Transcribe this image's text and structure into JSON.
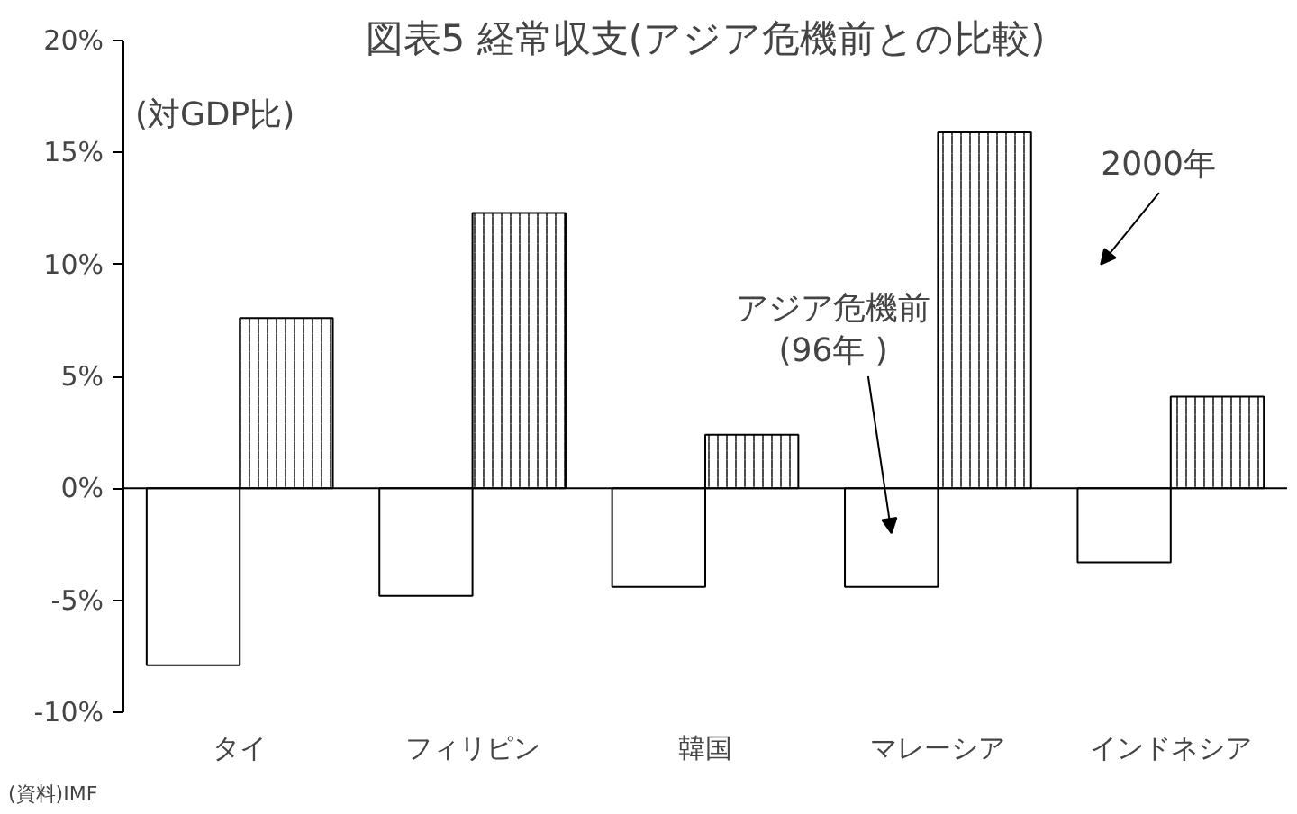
{
  "chart_data": {
    "type": "bar",
    "title": "図表5 経常収支(アジア危機前との比較)",
    "ylabel": "(対GDP比)",
    "categories": [
      "タイ",
      "フィリピン",
      "韓国",
      "マレーシア",
      "インドネシア"
    ],
    "series": [
      {
        "name": "アジア危機前\n(96年 )",
        "color": "#ffffff",
        "values": [
          -7.9,
          -4.8,
          -4.4,
          -4.4,
          -3.3
        ]
      },
      {
        "name": "2000年",
        "color": "#ffffff",
        "values": [
          7.6,
          12.3,
          2.4,
          15.9,
          4.1
        ]
      }
    ],
    "ylim": [
      -10,
      20
    ],
    "yticks": [
      {
        "value": -10,
        "label": "-10%"
      },
      {
        "value": -5,
        "label": "-5%"
      },
      {
        "value": 0,
        "label": "0%"
      },
      {
        "value": 5,
        "label": "5%"
      },
      {
        "value": 10,
        "label": "10%"
      },
      {
        "value": 15,
        "label": "15%"
      },
      {
        "value": 20,
        "label": "20%"
      }
    ],
    "annotations": [
      "(資料)IMF"
    ]
  }
}
